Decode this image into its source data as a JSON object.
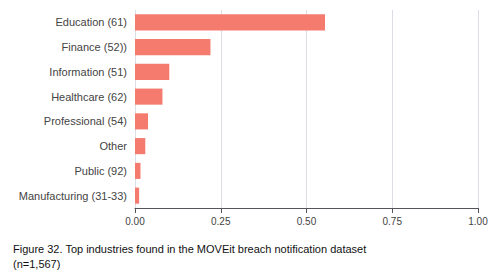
{
  "chart_data": {
    "type": "bar",
    "orientation": "horizontal",
    "title": "Figure 32. Top industries found in the MOVEit breach notification dataset",
    "subtitle": "(n=1,567)",
    "categories": [
      "Education (61)",
      "Finance (52))",
      "Information (51)",
      "Healthcare (62)",
      "Professional (54)",
      "Other",
      "Public (92)",
      "Manufacturing (31-33)"
    ],
    "values": [
      0.554,
      0.22,
      0.1,
      0.08,
      0.038,
      0.03,
      0.016,
      0.012
    ],
    "color": "#f47b6e",
    "xlim": [
      0,
      1.0
    ],
    "xticks": [
      {
        "value": 0.0,
        "label": "0.00"
      },
      {
        "value": 0.25,
        "label": "0.25"
      },
      {
        "value": 0.5,
        "label": "0.50"
      },
      {
        "value": 0.75,
        "label": "0.75"
      },
      {
        "value": 1.0,
        "label": "1.00"
      }
    ],
    "grid": true
  }
}
